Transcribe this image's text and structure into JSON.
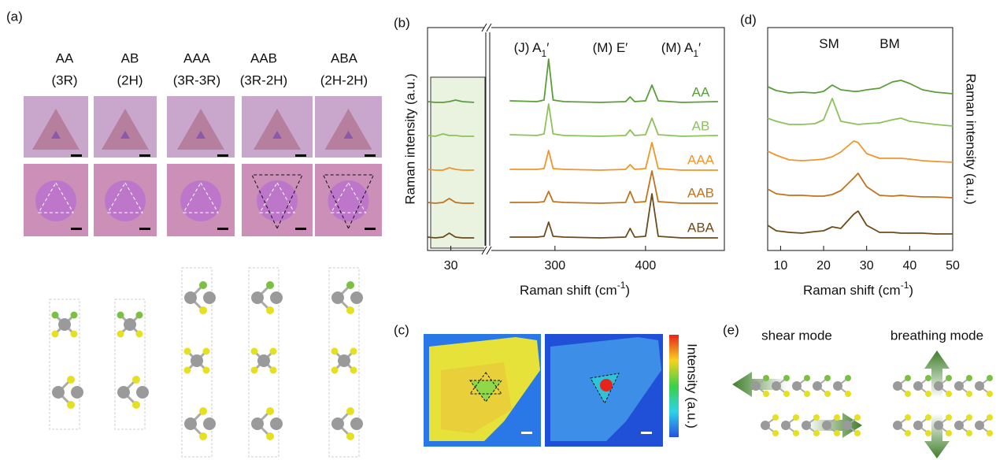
{
  "panel_a": {
    "label": "(a)",
    "columns": [
      {
        "stacking": "AA",
        "polytype": "(3R)"
      },
      {
        "stacking": "AB",
        "polytype": "(2H)"
      },
      {
        "stacking": "AAA",
        "polytype": "(3R-3R)"
      },
      {
        "stacking": "AAB",
        "polytype": "(3R-2H)"
      },
      {
        "stacking": "ABA",
        "polytype": "(2H-2H)"
      }
    ]
  },
  "panel_c": {
    "label": "(c)",
    "colorbar_label": "Intensity (a.u.)"
  },
  "panel_e": {
    "label": "(e)",
    "modes": [
      "shear mode",
      "breathing mode"
    ]
  },
  "chart_data": [
    {
      "type": "line",
      "label": "(b)",
      "ylabel": "Raman intensity (a.u.)",
      "xlabel": {
        "text": "Raman shift (cm",
        "sup": "-1",
        "end": ")"
      },
      "annotations": [
        {
          "text": "(J) A",
          "sub": "1",
          "suffix": "′"
        },
        {
          "text": "(M) E′"
        },
        {
          "text": "(M) A",
          "sub": "1",
          "suffix": "′"
        }
      ],
      "segments": [
        {
          "xlim": [
            27,
            34.5
          ],
          "xticks": [
            30
          ]
        },
        {
          "xlim": [
            228,
            487
          ],
          "xticks": [
            300,
            400
          ]
        }
      ],
      "x": [
        27,
        28,
        29,
        29.8,
        30.6,
        31.5,
        33,
        250,
        280,
        288,
        293,
        298,
        310,
        350,
        378,
        383,
        388,
        400,
        407,
        414,
        440,
        480
      ],
      "series": [
        {
          "name": "AA",
          "color": "#5a9e3a",
          "values": [
            1,
            0,
            0,
            1,
            3,
            1,
            0,
            2,
            1,
            3,
            55,
            3,
            1,
            0,
            1,
            7,
            1,
            2,
            22,
            2,
            0,
            1
          ]
        },
        {
          "name": "AB",
          "color": "#8dc25a",
          "values": [
            1,
            0,
            3,
            1,
            1,
            0,
            0,
            2,
            1,
            3,
            41,
            3,
            1,
            0,
            1,
            8,
            1,
            2,
            23,
            2,
            0,
            1
          ]
        },
        {
          "name": "AAA",
          "color": "#f0962a",
          "values": [
            1,
            0,
            0,
            3,
            1,
            0,
            0,
            1,
            1,
            2,
            25,
            2,
            1,
            0,
            1,
            7,
            1,
            2,
            35,
            2,
            0,
            0
          ]
        },
        {
          "name": "AAB",
          "color": "#c0731e",
          "values": [
            1,
            0,
            1,
            6,
            1,
            0,
            0,
            1,
            1,
            2,
            15,
            2,
            1,
            0,
            1,
            15,
            1,
            2,
            41,
            2,
            0,
            0
          ]
        },
        {
          "name": "ABA",
          "color": "#6e4a1a",
          "values": [
            1,
            0,
            1,
            6,
            1,
            0,
            0,
            1,
            1,
            2,
            20,
            2,
            1,
            0,
            1,
            12,
            1,
            2,
            56,
            2,
            0,
            0
          ]
        }
      ]
    },
    {
      "type": "line",
      "label": "(d)",
      "ylabel": "Raman intensity (a.u.)",
      "xlabel": {
        "text": "Raman shift (cm",
        "sup": "-1",
        "end": ")"
      },
      "annotations": [
        {
          "text": "SM"
        },
        {
          "text": "BM"
        }
      ],
      "xlim": [
        7,
        50
      ],
      "xticks": [
        10,
        20,
        30,
        40,
        50
      ],
      "x": [
        7,
        9,
        12,
        15,
        18,
        20,
        22,
        24,
        27,
        28,
        30,
        33,
        36,
        38,
        40,
        43,
        46,
        50
      ],
      "series": [
        {
          "name": "AA",
          "color": "#5a9e3a",
          "values": [
            10,
            5,
            2,
            3,
            2,
            4,
            12,
            6,
            4,
            4,
            6,
            8,
            16,
            18,
            14,
            6,
            3,
            1
          ]
        },
        {
          "name": "AB",
          "color": "#8dc25a",
          "values": [
            12,
            8,
            4,
            4,
            5,
            10,
            37,
            8,
            5,
            4,
            5,
            6,
            10,
            12,
            8,
            6,
            4,
            2
          ]
        },
        {
          "name": "AAA",
          "color": "#f0962a",
          "values": [
            15,
            10,
            4,
            3,
            4,
            5,
            8,
            14,
            28,
            26,
            12,
            6,
            6,
            6,
            5,
            3,
            2,
            1
          ]
        },
        {
          "name": "AAB",
          "color": "#c0731e",
          "values": [
            12,
            6,
            4,
            4,
            3,
            3,
            5,
            10,
            26,
            32,
            15,
            4,
            3,
            4,
            3,
            2,
            2,
            1
          ]
        },
        {
          "name": "ABA",
          "color": "#6e4a1a",
          "values": [
            12,
            5,
            3,
            2,
            4,
            5,
            10,
            8,
            26,
            30,
            12,
            3,
            3,
            2,
            2,
            2,
            1,
            1
          ]
        }
      ]
    }
  ]
}
